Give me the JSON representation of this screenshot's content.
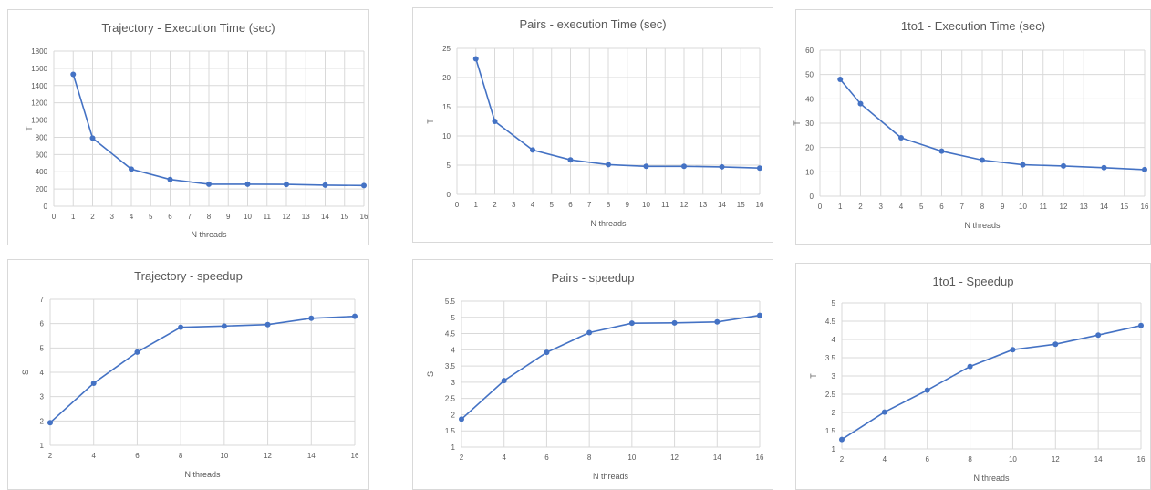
{
  "style": {
    "series_color": "#4472c4",
    "grid_color": "#d9d9d9",
    "text_color": "#595959"
  },
  "chart_data": [
    {
      "id": "trajectory-time",
      "type": "scatter",
      "title": "Trajectory - Execution Time (sec)",
      "xlabel": "N threads",
      "ylabel": "T",
      "xlim": [
        0,
        16
      ],
      "ylim": [
        0,
        1800
      ],
      "xticks": [
        0,
        1,
        2,
        3,
        4,
        5,
        6,
        7,
        8,
        9,
        10,
        11,
        12,
        13,
        14,
        15,
        16
      ],
      "yticks": [
        0,
        200,
        400,
        600,
        800,
        1000,
        1200,
        1400,
        1600,
        1800
      ],
      "grid": "vertical-and-horizontal",
      "series": [
        {
          "x": [
            1,
            2,
            4,
            6,
            8,
            10,
            12,
            14,
            16
          ],
          "y": [
            1530,
            790,
            430,
            310,
            255,
            255,
            253,
            245,
            240
          ]
        }
      ]
    },
    {
      "id": "pairs-time",
      "type": "scatter",
      "title": "Pairs - execution Time (sec)",
      "xlabel": "N threads",
      "ylabel": "T",
      "xlim": [
        0,
        16
      ],
      "ylim": [
        0,
        25
      ],
      "xticks": [
        0,
        1,
        2,
        3,
        4,
        5,
        6,
        7,
        8,
        9,
        10,
        11,
        12,
        13,
        14,
        15,
        16
      ],
      "yticks": [
        0,
        5,
        10,
        15,
        20,
        25
      ],
      "grid": "vertical-and-horizontal",
      "series": [
        {
          "x": [
            1,
            2,
            4,
            6,
            8,
            10,
            12,
            14,
            16
          ],
          "y": [
            23.2,
            12.5,
            7.6,
            5.9,
            5.1,
            4.8,
            4.8,
            4.7,
            4.5
          ]
        }
      ]
    },
    {
      "id": "1to1-time",
      "type": "scatter",
      "title": "1to1 - Execution Time (sec)",
      "xlabel": "N threads",
      "ylabel": "T",
      "xlim": [
        0,
        16
      ],
      "ylim": [
        0,
        60
      ],
      "xticks": [
        0,
        1,
        2,
        3,
        4,
        5,
        6,
        7,
        8,
        9,
        10,
        11,
        12,
        13,
        14,
        15,
        16
      ],
      "yticks": [
        0,
        10,
        20,
        30,
        40,
        50,
        60
      ],
      "grid": "vertical-and-horizontal",
      "series": [
        {
          "x": [
            1,
            2,
            4,
            6,
            8,
            10,
            12,
            14,
            16
          ],
          "y": [
            48,
            38,
            24,
            18.5,
            14.8,
            12.9,
            12.4,
            11.7,
            10.9
          ]
        }
      ]
    },
    {
      "id": "trajectory-speedup",
      "type": "line",
      "title": "Trajectory - speedup",
      "xlabel": "N threads",
      "ylabel": "S",
      "xlim": [
        2,
        16
      ],
      "ylim": [
        1,
        7
      ],
      "xticks": [
        2,
        4,
        6,
        8,
        10,
        12,
        14,
        16
      ],
      "yticks": [
        1,
        2,
        3,
        4,
        5,
        6,
        7
      ],
      "grid": "vertical-and-horizontal",
      "series": [
        {
          "x": [
            2,
            4,
            6,
            8,
            10,
            12,
            14,
            16
          ],
          "y": [
            1.93,
            3.55,
            4.83,
            5.85,
            5.9,
            5.96,
            6.22,
            6.3
          ]
        }
      ]
    },
    {
      "id": "pairs-speedup",
      "type": "line",
      "title": "Pairs - speedup",
      "xlabel": "N threads",
      "ylabel": "S",
      "xlim": [
        2,
        16
      ],
      "ylim": [
        1,
        5.5
      ],
      "xticks": [
        2,
        4,
        6,
        8,
        10,
        12,
        14,
        16
      ],
      "yticks": [
        1,
        1.5,
        2,
        2.5,
        3,
        3.5,
        4,
        4.5,
        5,
        5.5
      ],
      "ytick_labels": [
        "1",
        "1.5",
        "2",
        "2.5",
        "3",
        "3.5",
        "4",
        "4.5",
        "5",
        "5.5"
      ],
      "grid": "vertical-and-horizontal",
      "series": [
        {
          "x": [
            2,
            4,
            6,
            8,
            10,
            12,
            14,
            16
          ],
          "y": [
            1.86,
            3.05,
            3.92,
            4.53,
            4.82,
            4.83,
            4.86,
            5.06
          ]
        }
      ]
    },
    {
      "id": "1to1-speedup",
      "type": "line",
      "title": "1to1 - Speedup",
      "xlabel": "N threads",
      "ylabel": "T",
      "xlim": [
        2,
        16
      ],
      "ylim": [
        1,
        5
      ],
      "xticks": [
        2,
        4,
        6,
        8,
        10,
        12,
        14,
        16
      ],
      "yticks": [
        1,
        1.5,
        2,
        2.5,
        3,
        3.5,
        4,
        4.5,
        5
      ],
      "ytick_labels": [
        "1",
        "1.5",
        "2",
        "2.5",
        "3",
        "3.5",
        "4",
        "4.5",
        "5"
      ],
      "grid": "vertical-and-horizontal",
      "series": [
        {
          "x": [
            2,
            4,
            6,
            8,
            10,
            12,
            14,
            16
          ],
          "y": [
            1.26,
            2.01,
            2.61,
            3.26,
            3.72,
            3.87,
            4.12,
            4.38
          ]
        }
      ]
    }
  ]
}
